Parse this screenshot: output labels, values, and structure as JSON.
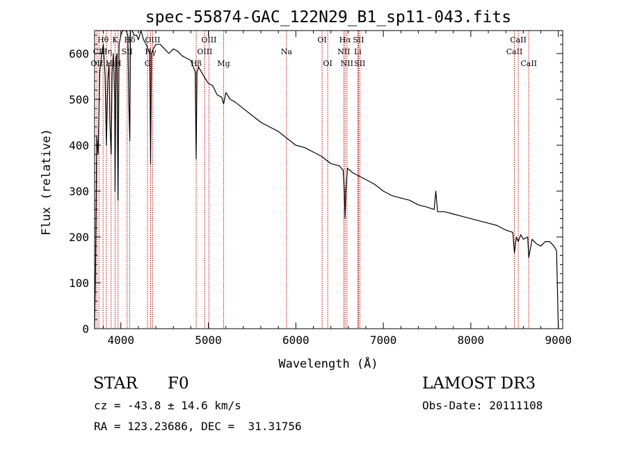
{
  "chart_data": {
    "type": "line",
    "title": "spec-55874-GAC_122N29_B1_sp11-043.fits",
    "xlabel": "Wavelength (Å)",
    "ylabel": "Flux (relative)",
    "xlim": [
      3700,
      9050
    ],
    "ylim": [
      0,
      650
    ],
    "x_ticks": [
      4000,
      5000,
      6000,
      7000,
      8000,
      9000
    ],
    "y_ticks": [
      0,
      100,
      200,
      300,
      400,
      500,
      600
    ],
    "grid": false,
    "line_color": "#000000",
    "marker_color": "#c00000",
    "series": [
      {
        "name": "flux",
        "x": [
          3700,
          3710,
          3725,
          3740,
          3760,
          3780,
          3800,
          3820,
          3835,
          3850,
          3865,
          3875,
          3889,
          3900,
          3915,
          3930,
          3934,
          3945,
          3955,
          3968,
          3980,
          3990,
          4000,
          4020,
          4040,
          4060,
          4080,
          4090,
          4102,
          4110,
          4130,
          4150,
          4180,
          4200,
          4230,
          4260,
          4290,
          4310,
          4330,
          4340,
          4350,
          4370,
          4400,
          4450,
          4500,
          4550,
          4600,
          4650,
          4700,
          4750,
          4800,
          4830,
          4850,
          4861,
          4870,
          4890,
          4920,
          4950,
          5000,
          5050,
          5100,
          5150,
          5175,
          5200,
          5250,
          5300,
          5400,
          5500,
          5600,
          5700,
          5800,
          5900,
          6000,
          6100,
          6200,
          6300,
          6400,
          6500,
          6540,
          6555,
          6563,
          6572,
          6590,
          6650,
          6700,
          6800,
          6900,
          7000,
          7100,
          7200,
          7300,
          7400,
          7500,
          7580,
          7600,
          7620,
          7700,
          7800,
          7900,
          8000,
          8100,
          8200,
          8300,
          8400,
          8480,
          8498,
          8520,
          8542,
          8570,
          8600,
          8650,
          8662,
          8700,
          8750,
          8800,
          8850,
          8900,
          8950,
          8980,
          9000
        ],
        "values": [
          0,
          120,
          420,
          380,
          560,
          600,
          620,
          550,
          400,
          540,
          580,
          450,
          380,
          560,
          600,
          500,
          300,
          590,
          600,
          280,
          620,
          630,
          640,
          650,
          660,
          650,
          640,
          500,
          410,
          650,
          650,
          640,
          640,
          630,
          650,
          630,
          620,
          610,
          600,
          360,
          600,
          610,
          620,
          620,
          610,
          600,
          610,
          605,
          595,
          590,
          585,
          570,
          560,
          370,
          560,
          570,
          560,
          550,
          535,
          530,
          510,
          505,
          490,
          515,
          500,
          495,
          480,
          465,
          450,
          440,
          430,
          415,
          400,
          395,
          385,
          375,
          360,
          355,
          345,
          300,
          240,
          300,
          350,
          340,
          335,
          325,
          315,
          300,
          290,
          285,
          280,
          270,
          265,
          260,
          300,
          255,
          255,
          250,
          245,
          240,
          235,
          230,
          225,
          215,
          210,
          165,
          200,
          190,
          205,
          195,
          200,
          155,
          195,
          185,
          180,
          190,
          190,
          180,
          170,
          0
        ]
      }
    ],
    "line_markers": [
      {
        "label": "Hθ",
        "x": 3797,
        "row": 0
      },
      {
        "label": "CII",
        "x": 3750,
        "row": 1
      },
      {
        "label": "OII",
        "x": 3727,
        "row": 2
      },
      {
        "label": "Hη",
        "x": 3835,
        "row": 1
      },
      {
        "label": "Hε",
        "x": 3889,
        "row": 2
      },
      {
        "label": "K",
        "x": 3934,
        "row": 0
      },
      {
        "label": "H",
        "x": 3968,
        "row": 2
      },
      {
        "label": "Hδ",
        "x": 4102,
        "row": 0
      },
      {
        "label": "SII",
        "x": 4072,
        "row": 1
      },
      {
        "label": "G",
        "x": 4305,
        "row": 2
      },
      {
        "label": "OIII",
        "x": 4363,
        "row": 0
      },
      {
        "label": "Hγ",
        "x": 4340,
        "row": 1
      },
      {
        "label": "Hβ",
        "x": 4861,
        "row": 2
      },
      {
        "label": "OIII",
        "x": 4959,
        "row": 1
      },
      {
        "label": "OIII",
        "x": 5007,
        "row": 0
      },
      {
        "label": "Mg",
        "x": 5175,
        "row": 2
      },
      {
        "label": "Na",
        "x": 5893,
        "row": 1
      },
      {
        "label": "OI",
        "x": 6300,
        "row": 0
      },
      {
        "label": "OI",
        "x": 6364,
        "row": 2
      },
      {
        "label": "NII",
        "x": 6548,
        "row": 1
      },
      {
        "label": "Hα",
        "x": 6563,
        "row": 0
      },
      {
        "label": "NII",
        "x": 6584,
        "row": 2
      },
      {
        "label": "Li",
        "x": 6708,
        "row": 1
      },
      {
        "label": "SII",
        "x": 6717,
        "row": 0
      },
      {
        "label": "SII",
        "x": 6731,
        "row": 2
      },
      {
        "label": "CaII",
        "x": 8498,
        "row": 1
      },
      {
        "label": "CaII",
        "x": 8542,
        "row": 0
      },
      {
        "label": "CaII",
        "x": 8662,
        "row": 2
      }
    ]
  },
  "info": {
    "object_type": "STAR",
    "subclass": "F0",
    "survey": "LAMOST DR3",
    "velocity": "cz = -43.8 ± 14.6 km/s",
    "obs_date": "Obs-Date: 20111108",
    "coords": "RA = 123.23686, DEC =  31.31756"
  }
}
